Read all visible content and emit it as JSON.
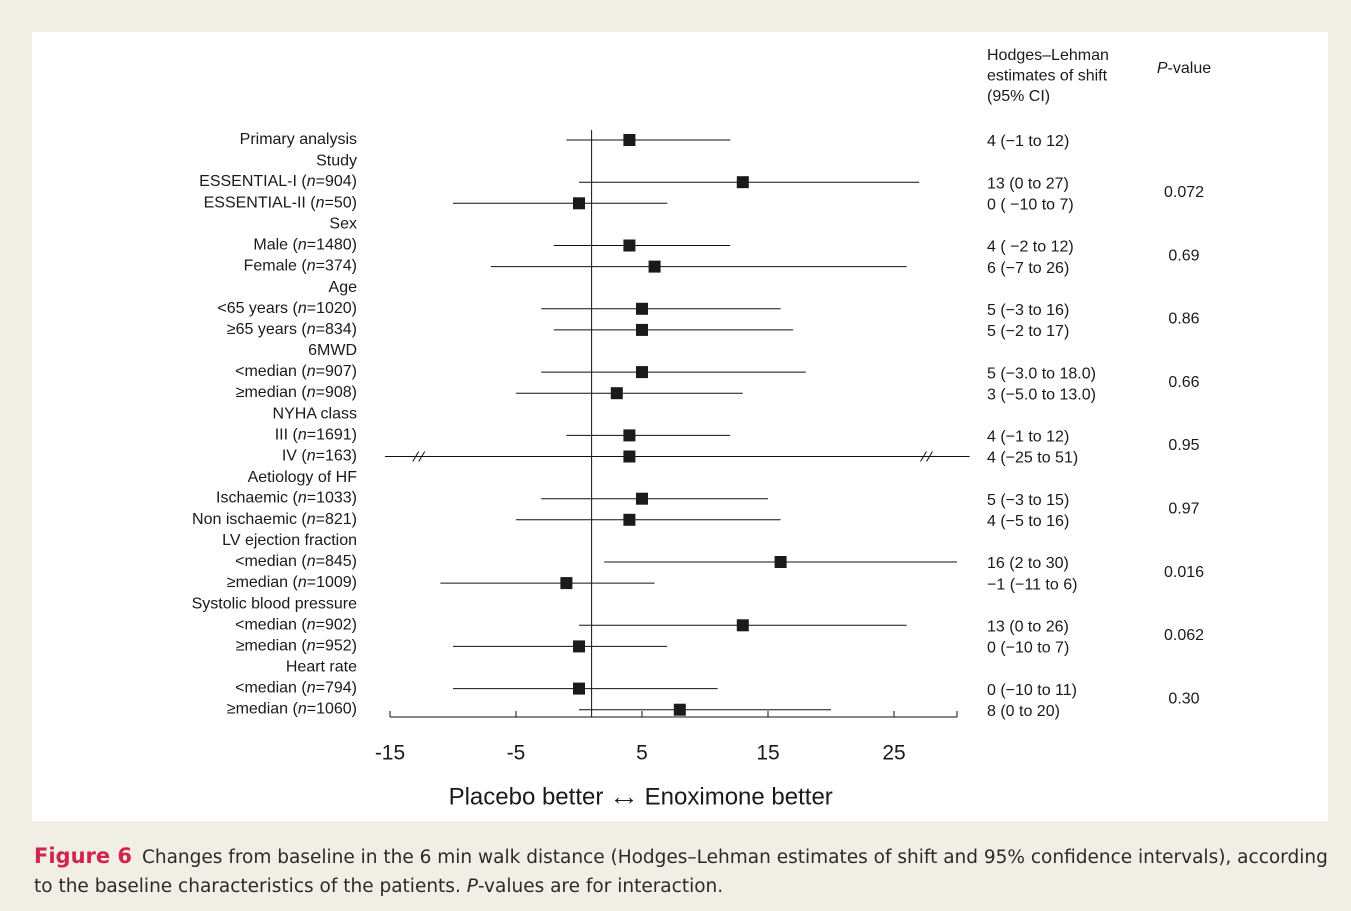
{
  "chart_data": {
    "type": "forest",
    "col_header_estimate": [
      "Hodges–Lehman",
      "estimates of shift",
      "(95% CI)"
    ],
    "col_header_p_prefix": "P",
    "col_header_p_suffix": "-value",
    "x_ticks": [
      "-15",
      "-5",
      "5",
      "15",
      "25"
    ],
    "x_tick_values": [
      -15,
      -5,
      5,
      15,
      25
    ],
    "xlim": [
      -15,
      30
    ],
    "reference_line": 1,
    "xlabel_left": "Placebo better ←",
    "xlabel_right": "→ Enoximone better",
    "axis_break_marks": true,
    "rows": [
      {
        "kind": "data",
        "label": "Primary analysis",
        "est": 4,
        "lo": -1,
        "hi": 12,
        "est_text": "4 (−1 to 12)"
      },
      {
        "kind": "header",
        "label": "Study"
      },
      {
        "kind": "data",
        "label_pre": "ESSENTIAL-I (",
        "n": "904",
        "est": 13,
        "lo": 0,
        "hi": 27,
        "est_text": "13 (0 to 27)"
      },
      {
        "kind": "data",
        "label_pre": "ESSENTIAL-II (",
        "n": "50",
        "est": 0,
        "lo": -10,
        "hi": 7,
        "est_text": "0 ( −10 to 7)"
      },
      {
        "kind": "header",
        "label": "Sex"
      },
      {
        "kind": "data",
        "label_pre": "Male (",
        "n": "1480",
        "est": 4,
        "lo": -2,
        "hi": 12,
        "est_text": "4 ( −2 to 12)"
      },
      {
        "kind": "data",
        "label_pre": "Female (",
        "n": "374",
        "est": 6,
        "lo": -7,
        "hi": 26,
        "est_text": "6 (−7 to 26)"
      },
      {
        "kind": "header",
        "label": "Age"
      },
      {
        "kind": "data",
        "label_pre": "<65 years (",
        "n": "1020",
        "est": 5,
        "lo": -3,
        "hi": 16,
        "est_text": "5 (−3 to 16)"
      },
      {
        "kind": "data",
        "label_pre": "≥65 years (",
        "n": "834",
        "est": 5,
        "lo": -2,
        "hi": 17,
        "est_text": "5 (−2 to 17)"
      },
      {
        "kind": "header",
        "label": "6MWD"
      },
      {
        "kind": "data",
        "label_pre": "<median (",
        "n": "907",
        "est": 5,
        "lo": -3,
        "hi": 18,
        "est_text": "5 (−3.0 to 18.0)"
      },
      {
        "kind": "data",
        "label_pre": "≥median (",
        "n": "908",
        "est": 3,
        "lo": -5,
        "hi": 13,
        "est_text": "3 (−5.0 to 13.0)"
      },
      {
        "kind": "header",
        "label": "NYHA class"
      },
      {
        "kind": "data",
        "label_pre": "III (",
        "n": "1691",
        "est": 4,
        "lo": -1,
        "hi": 12,
        "est_text": "4 (−1 to 12)"
      },
      {
        "kind": "data",
        "label_pre": "IV (",
        "n": "163",
        "est": 4,
        "lo": -25,
        "hi": 51,
        "est_text": "4 (−25 to 51)",
        "broken": true
      },
      {
        "kind": "header",
        "label": "Aetiology of HF"
      },
      {
        "kind": "data",
        "label_pre": "Ischaemic (",
        "n": "1033",
        "est": 5,
        "lo": -3,
        "hi": 15,
        "est_text": "5 (−3 to 15)"
      },
      {
        "kind": "data",
        "label_pre": "Non ischaemic (",
        "n": "821",
        "est": 4,
        "lo": -5,
        "hi": 16,
        "est_text": "4 (−5 to 16)"
      },
      {
        "kind": "header",
        "label": "LV ejection fraction"
      },
      {
        "kind": "data",
        "label_pre": "<median (",
        "n": "845",
        "est": 16,
        "lo": 2,
        "hi": 30,
        "est_text": "16 (2 to 30)"
      },
      {
        "kind": "data",
        "label_pre": "≥median (",
        "n": "1009",
        "est": -1,
        "lo": -11,
        "hi": 6,
        "est_text": "−1 (−11 to 6)"
      },
      {
        "kind": "header",
        "label": "Systolic blood pressure"
      },
      {
        "kind": "data",
        "label_pre": "<median (",
        "n": "902",
        "est": 13,
        "lo": 0,
        "hi": 26,
        "est_text": "13 (0 to 26)"
      },
      {
        "kind": "data",
        "label_pre": "≥median (",
        "n": "952",
        "est": 0,
        "lo": -10,
        "hi": 7,
        "est_text": "0 (−10 to 7)"
      },
      {
        "kind": "header",
        "label": "Heart rate"
      },
      {
        "kind": "data",
        "label_pre": "<median (",
        "n": "794",
        "est": 0,
        "lo": -10,
        "hi": 11,
        "est_text": "0 (−10 to 11)"
      },
      {
        "kind": "data",
        "label_pre": "≥median (",
        "n": "1060",
        "est": 8,
        "lo": 0,
        "hi": 20,
        "est_text": "8 (0 to 20)"
      }
    ],
    "p_values": [
      "0.072",
      "0.69",
      "0.86",
      "0.66",
      "0.95",
      "0.97",
      "0.016",
      "0.062",
      "0.30"
    ]
  },
  "caption": {
    "label": "Figure 6",
    "text_1": "Changes from baseline in the 6 min walk distance (Hodges–Lehman estimates of shift and 95% confidence intervals), according to the baseline characteristics of the patients. ",
    "text_p": "P",
    "text_2": "-values are for interaction."
  }
}
